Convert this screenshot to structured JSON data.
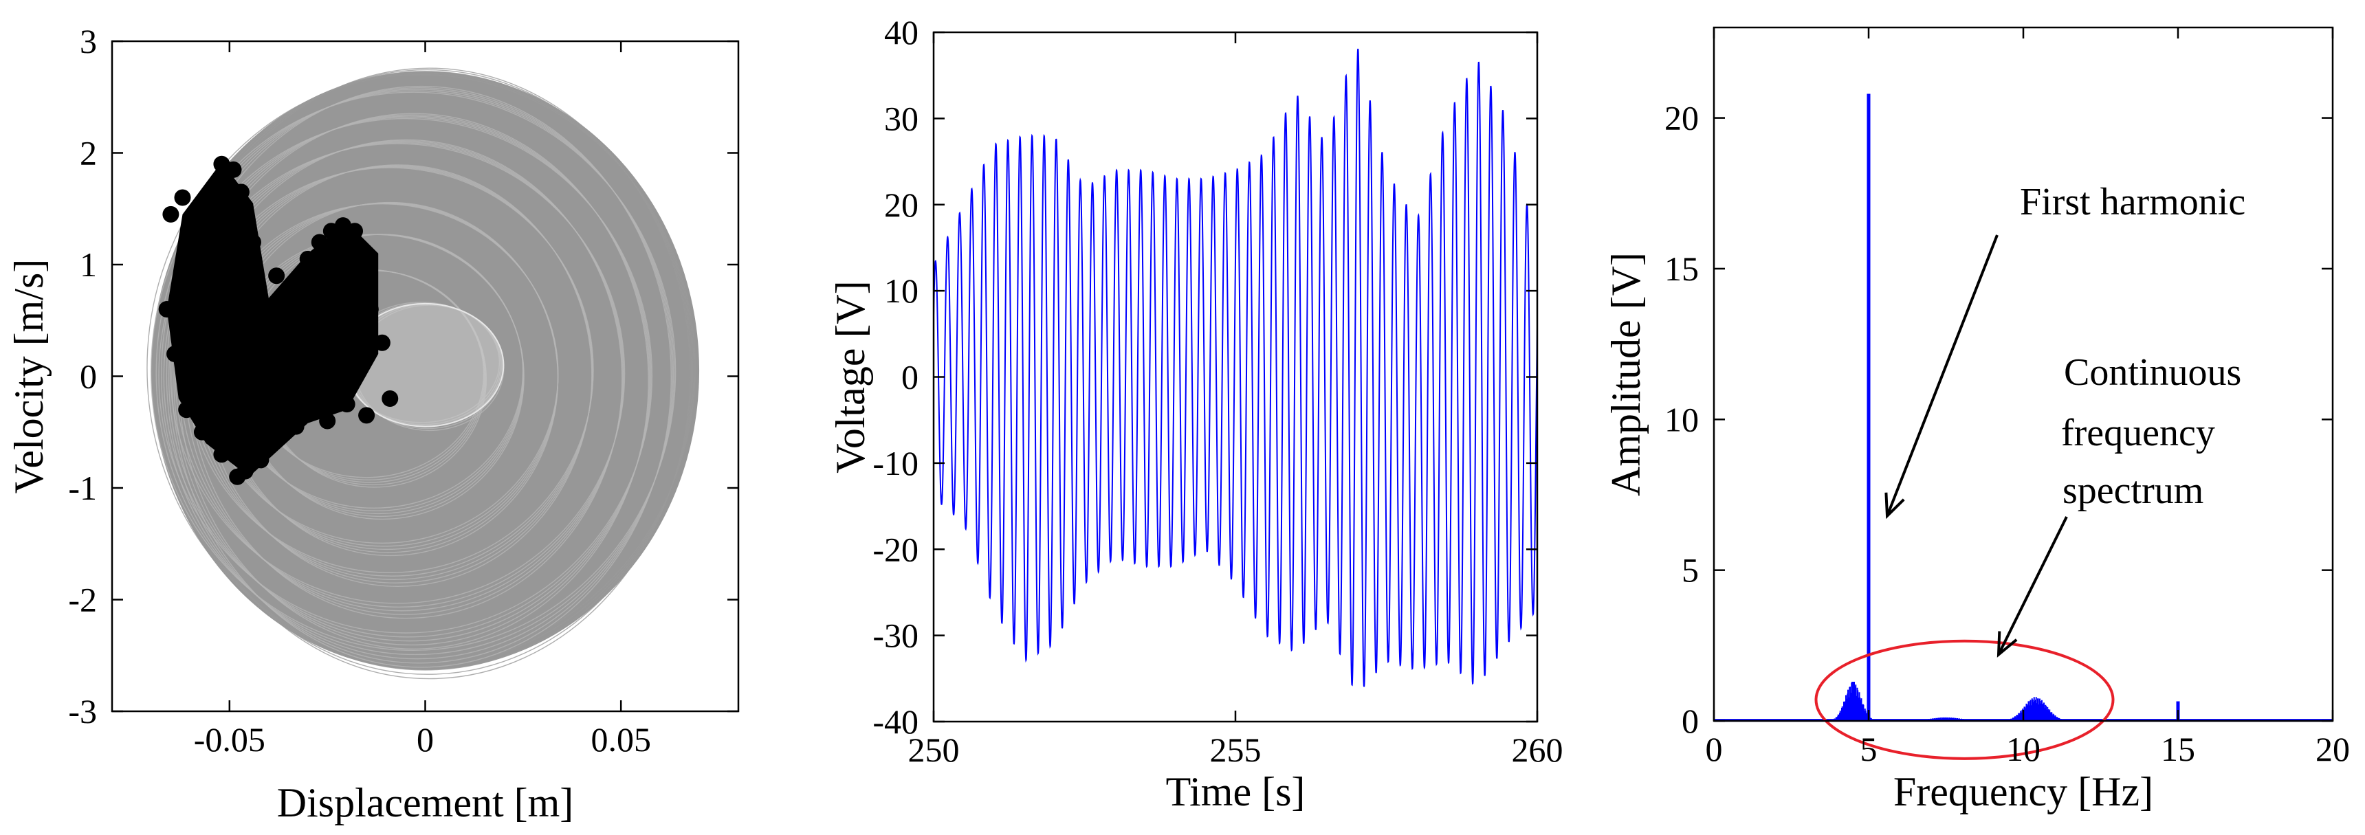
{
  "chart_data": [
    {
      "type": "scatter",
      "xlabel": "Displacement [m]",
      "ylabel": "Velocity [m/s]",
      "xlim": [
        -0.08,
        0.08
      ],
      "ylim": [
        -3,
        3
      ],
      "xticks": [
        -0.05,
        0,
        0.05
      ],
      "xtick_labels": [
        "-0.05",
        "0",
        "0.05"
      ],
      "yticks": [
        -3,
        -2,
        -1,
        0,
        1,
        2,
        3
      ],
      "ytick_labels": [
        "-3",
        "-2",
        "-1",
        "0",
        "1",
        "2",
        "3"
      ],
      "grid": false,
      "series": [
        {
          "style": "line",
          "color": "#8c8c8c",
          "orbits": [
            {
              "center": [
                0,
                0.05
              ],
              "rx": 0.07,
              "ry": 2.68
            },
            {
              "center": [
                -0.002,
                0.02
              ],
              "rx": 0.067,
              "ry": 2.55
            },
            {
              "center": [
                -0.004,
                -0.02
              ],
              "rx": 0.063,
              "ry": 2.35
            },
            {
              "center": [
                -0.006,
                0.0
              ],
              "rx": 0.058,
              "ry": 2.1
            },
            {
              "center": [
                -0.008,
                0.03
              ],
              "rx": 0.052,
              "ry": 1.85
            },
            {
              "center": [
                -0.01,
                0.0
              ],
              "rx": 0.045,
              "ry": 1.55
            },
            {
              "center": [
                -0.012,
                0.02
              ],
              "rx": 0.038,
              "ry": 1.25
            },
            {
              "center": [
                -0.014,
                0.0
              ],
              "rx": 0.03,
              "ry": 0.95
            },
            {
              "center": [
                0.0,
                0.1
              ],
              "rx": 0.02,
              "ry": 0.55
            }
          ]
        },
        {
          "style": "markers",
          "color": "#000000",
          "points": [
            [
              -0.065,
              1.45
            ],
            [
              -0.062,
              1.6
            ],
            [
              -0.058,
              1.3
            ],
            [
              -0.066,
              0.6
            ],
            [
              -0.064,
              0.2
            ],
            [
              -0.061,
              -0.3
            ],
            [
              -0.057,
              -0.5
            ],
            [
              -0.052,
              1.9
            ],
            [
              -0.049,
              1.85
            ],
            [
              -0.047,
              1.65
            ],
            [
              -0.052,
              -0.7
            ],
            [
              -0.048,
              -0.9
            ],
            [
              -0.046,
              -0.85
            ],
            [
              -0.042,
              -0.75
            ],
            [
              -0.038,
              0.9
            ],
            [
              -0.036,
              -0.5
            ],
            [
              -0.033,
              -0.45
            ],
            [
              -0.03,
              1.05
            ],
            [
              -0.027,
              1.2
            ],
            [
              -0.024,
              1.3
            ],
            [
              -0.021,
              1.35
            ],
            [
              -0.018,
              1.3
            ],
            [
              -0.016,
              1.05
            ],
            [
              -0.014,
              0.6
            ],
            [
              -0.011,
              0.3
            ],
            [
              -0.009,
              -0.2
            ],
            [
              -0.015,
              -0.35
            ],
            [
              -0.02,
              -0.25
            ],
            [
              -0.025,
              -0.4
            ],
            [
              -0.04,
              0.4
            ],
            [
              -0.044,
              1.2
            ],
            [
              -0.05,
              0.5
            ],
            [
              -0.055,
              0.9
            ],
            [
              -0.035,
              0.2
            ],
            [
              -0.03,
              -0.1
            ],
            [
              -0.025,
              0.5
            ],
            [
              -0.02,
              0.8
            ],
            [
              -0.045,
              -0.3
            ],
            [
              -0.06,
              1.0
            ],
            [
              -0.059,
              0.0
            ]
          ]
        }
      ]
    },
    {
      "type": "line",
      "xlabel": "Time [s]",
      "ylabel": "Voltage [V]",
      "xlim": [
        250,
        260
      ],
      "ylim": [
        -40,
        40
      ],
      "xticks": [
        250,
        255,
        260
      ],
      "xtick_labels": [
        "250",
        "255",
        "260"
      ],
      "yticks": [
        -40,
        -30,
        -20,
        -10,
        0,
        10,
        20,
        30,
        40
      ],
      "ytick_labels": [
        "-40",
        "-30",
        "-20",
        "-10",
        "0",
        "10",
        "20",
        "30",
        "40"
      ],
      "grid": false,
      "series": [
        {
          "color": "#0000ff",
          "carrier_frequency_hz": 5,
          "envelope_time": [
            250,
            250.5,
            251,
            251.5,
            252,
            252.5,
            253,
            253.5,
            254,
            254.5,
            255,
            255.5,
            256,
            256.5,
            257,
            257.5,
            258,
            258.5,
            259,
            259.5,
            260
          ],
          "envelope_upper": [
            13,
            20,
            27,
            28,
            28,
            22,
            24,
            24,
            23,
            23,
            24,
            26,
            33,
            27,
            39,
            24,
            18,
            30,
            37,
            30,
            15
          ],
          "envelope_lower": [
            -14,
            -17,
            -27,
            -33,
            -31,
            -24,
            -21,
            -22,
            -22,
            -20,
            -24,
            -30,
            -32,
            -28,
            -37,
            -33,
            -34,
            -33,
            -36,
            -31,
            -27
          ]
        }
      ]
    },
    {
      "type": "line",
      "xlabel": "Frequency [Hz]",
      "ylabel": "Amplitude [V]",
      "xlim": [
        0,
        20
      ],
      "ylim": [
        0,
        23
      ],
      "xticks": [
        0,
        5,
        10,
        15,
        20
      ],
      "xtick_labels": [
        "0",
        "5",
        "10",
        "15",
        "20"
      ],
      "yticks": [
        0,
        5,
        10,
        15,
        20
      ],
      "ytick_labels": [
        "0",
        "5",
        "10",
        "15",
        "20"
      ],
      "grid": false,
      "series": [
        {
          "color": "#0000ff",
          "peaks": [
            {
              "x": 5.0,
              "y": 20.8
            },
            {
              "x": 4.5,
              "y": 1.3
            },
            {
              "x": 15.0,
              "y": 0.65
            }
          ],
          "bands": [
            {
              "x_from": 3.8,
              "x_to": 5.6,
              "peak_x": 4.5,
              "peak_y": 1.3
            },
            {
              "x_from": 5.6,
              "x_to": 9.2,
              "peak_x": 7.5,
              "peak_y": 0.12
            },
            {
              "x_from": 9.2,
              "x_to": 11.8,
              "peak_x": 10.4,
              "peak_y": 0.8
            }
          ]
        }
      ],
      "annotations": [
        {
          "text": "First harmonic",
          "arrow_to": [
            5.6,
            6.8
          ]
        },
        {
          "text": [
            "Continuous",
            "frequency",
            "spectrum"
          ],
          "arrow_to": [
            9.2,
            2.2
          ]
        }
      ],
      "highlight_ellipse": {
        "center": [
          8.1,
          0.7
        ],
        "rx": 4.8,
        "ry": 1.95,
        "color": "#e8202a"
      }
    }
  ]
}
